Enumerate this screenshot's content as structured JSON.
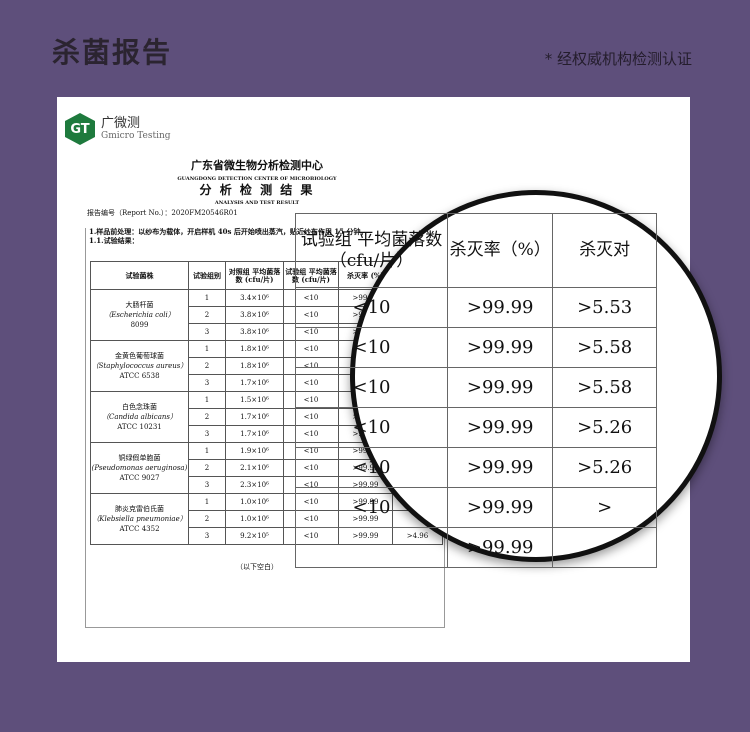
{
  "header": {
    "title": "杀菌报告",
    "certified": "* 经权威机构检测认证"
  },
  "logo": {
    "mark": "GT",
    "cn": "广微测",
    "en": "Gmicro Testing"
  },
  "document": {
    "org_cn": "广东省微生物分析检测中心",
    "org_en": "GUANGDONG DETECTION CENTER OF MICROBIOLOGY",
    "title_cn": "分 析 检 测 结 果",
    "title_en": "ANALYSIS AND TEST RESULT",
    "report_no": "报告编号（Report No.）：2020FM20546R01",
    "pretreat": "1.样品前处理：以纱布为载体，开启样机 40s 后开始喷出蒸汽，贴近纱布作用 15 分钟。",
    "section": "1.1.试验结果：",
    "columns": [
      "试验菌株",
      "试验组别",
      "对照组 平均菌落数 (cfu/片)",
      "试验组 平均菌落数 (cfu/片)",
      "杀灭率 (%)",
      ""
    ],
    "strains": [
      {
        "cn": "大肠杆菌",
        "latin": "（Escherichia coli）",
        "code": "8099",
        "rows": [
          [
            "1",
            "3.4×10⁶",
            "<10",
            ">99.99",
            ""
          ],
          [
            "2",
            "3.8×10⁶",
            "<10",
            ">99.99",
            ""
          ],
          [
            "3",
            "3.8×10⁶",
            "<10",
            ">99.99",
            ""
          ]
        ]
      },
      {
        "cn": "金黄色葡萄球菌",
        "latin": "（Staphylococcus aureus）",
        "code": "ATCC 6538",
        "rows": [
          [
            "1",
            "1.8×10⁶",
            "<10",
            ">99.99",
            ""
          ],
          [
            "2",
            "1.8×10⁶",
            "<10",
            ">99.99",
            ""
          ],
          [
            "3",
            "1.7×10⁶",
            "<10",
            ">99.99",
            ""
          ]
        ]
      },
      {
        "cn": "白色念珠菌",
        "latin": "（Candida albicans）",
        "code": "ATCC 10231",
        "rows": [
          [
            "1",
            "1.5×10⁶",
            "<10",
            ">99.99",
            ""
          ],
          [
            "2",
            "1.7×10⁶",
            "<10",
            ">99.99",
            ""
          ],
          [
            "3",
            "1.7×10⁶",
            "<10",
            ">99.99",
            ""
          ]
        ]
      },
      {
        "cn": "铜绿假单胞菌",
        "latin": "(Pseudomonas aeruginosa)",
        "code": "ATCC 9027",
        "rows": [
          [
            "1",
            "1.9×10⁶",
            "<10",
            ">99.99",
            ""
          ],
          [
            "2",
            "2.1×10⁶",
            "<10",
            ">99.99",
            ""
          ],
          [
            "3",
            "2.3×10⁶",
            "<10",
            ">99.99",
            ""
          ]
        ]
      },
      {
        "cn": "肺炎克雷伯氏菌",
        "latin": "（Klebsiella pneumoniae）",
        "code": "ATCC 4352",
        "rows": [
          [
            "1",
            "1.0×10⁶",
            "<10",
            ">99.99",
            ""
          ],
          [
            "2",
            "1.0×10⁶",
            "<10",
            ">99.99",
            ""
          ],
          [
            "3",
            "9.2×10⁵",
            "<10",
            ">99.99",
            ">4.96"
          ]
        ]
      }
    ],
    "blank_note": "（以下空白）"
  },
  "magnifier": {
    "headers": [
      "试验组 平均菌落数（cfu/片）",
      "杀灭率（%）",
      "杀灭对"
    ],
    "rows": [
      [
        "<10",
        ">99.99",
        ">5.53"
      ],
      [
        "<10",
        ">99.99",
        ">5.58"
      ],
      [
        "<10",
        ">99.99",
        ">5.58"
      ],
      [
        "<10",
        ">99.99",
        ">5.26"
      ],
      [
        "<10",
        ">99.99",
        ">5.26"
      ],
      [
        "<10",
        ">99.99",
        ">"
      ],
      [
        "",
        ">99.99",
        ""
      ]
    ]
  }
}
